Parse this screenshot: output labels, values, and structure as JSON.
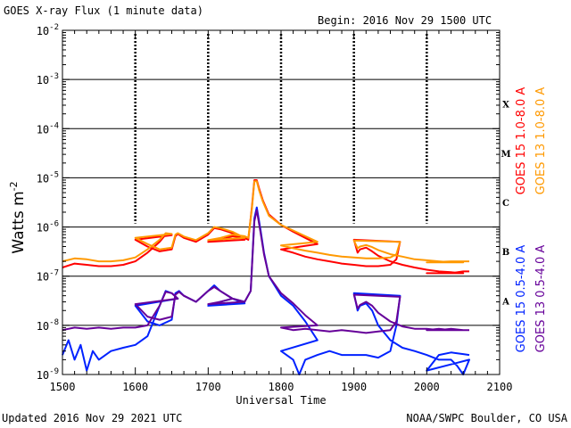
{
  "header": {
    "title": "GOES X-ray Flux (1 minute data)",
    "begin": "Begin: 2016 Nov 29 1500 UTC"
  },
  "footer": {
    "updated": "Updated 2016 Nov 29 2021 UTC",
    "credit": "NOAA/SWPC Boulder, CO USA"
  },
  "chart_data": {
    "type": "line",
    "title": "GOES X-ray Flux (1 minute data)",
    "xlabel": "Universal Time",
    "ylabel": "Watts m",
    "ylabel_sup": "-2",
    "x_ticks": [
      "1500",
      "1600",
      "1700",
      "1800",
      "1900",
      "2000",
      "2100"
    ],
    "x_range": [
      "1500",
      "2100"
    ],
    "y_scale": "log",
    "y_range_exponents": [
      -9,
      -2
    ],
    "y_ticks": [
      {
        "base": "10",
        "exp": "-2"
      },
      {
        "base": "10",
        "exp": "-3"
      },
      {
        "base": "10",
        "exp": "-4"
      },
      {
        "base": "10",
        "exp": "-5"
      },
      {
        "base": "10",
        "exp": "-6"
      },
      {
        "base": "10",
        "exp": "-7"
      },
      {
        "base": "10",
        "exp": "-8"
      },
      {
        "base": "10",
        "exp": "-9"
      }
    ],
    "flare_classes": [
      {
        "label": "X",
        "exp": -3.5
      },
      {
        "label": "M",
        "exp": -4.5
      },
      {
        "label": "C",
        "exp": -5.5
      },
      {
        "label": "B",
        "exp": -6.5
      },
      {
        "label": "A",
        "exp": -7.5
      }
    ],
    "grid": "horizontal lines at each decade from 1e-8 to 1e-3",
    "legend_placement": "right, vertical",
    "series": [
      {
        "name": "GOES 15 1.0-8.0 A",
        "color": "#ff0000",
        "x": [
          "1500",
          "1510",
          "1520",
          "1530",
          "1540",
          "1550",
          "1560",
          "1570",
          "1580",
          "1585",
          "1590",
          "1600",
          "1610",
          "1620",
          "1630",
          "1633",
          "1635",
          "1640",
          "1650",
          "1660",
          "1665",
          "1670",
          "1680",
          "1690",
          "1700",
          "1710",
          "1720",
          "1730",
          "1733",
          "1736",
          "1738",
          "1740",
          "1742",
          "1745",
          "1750",
          "1760",
          "1770",
          "1780",
          "1790",
          "1800",
          "1810",
          "1820",
          "1830",
          "1840",
          "1850",
          "1860",
          "1870",
          "1880",
          "1890",
          "1895",
          "1898",
          "1900",
          "1903",
          "1905",
          "1910",
          "1915",
          "1920",
          "1930",
          "1940",
          "1950",
          "1960",
          "1970",
          "1980",
          "1990",
          "2000",
          "2010",
          "2020",
          "2030",
          "2035"
        ],
        "y": [
          1.5e-07,
          1.8e-07,
          1.7e-07,
          1.6e-07,
          1.6e-07,
          1.7e-07,
          2e-07,
          3e-07,
          5e-07,
          7e-07,
          6.8e-07,
          5.5e-07,
          4e-07,
          3.2e-07,
          3.5e-07,
          6.5e-07,
          7.2e-07,
          6e-07,
          5e-07,
          7e-07,
          9.5e-07,
          9e-07,
          7.5e-07,
          5.5e-07,
          5e-07,
          5.5e-07,
          6.5e-07,
          6e-07,
          5.5e-07,
          2.5e-06,
          9e-06,
          9e-06,
          6e-06,
          3.5e-06,
          1.8e-06,
          1.1e-06,
          8e-07,
          6e-07,
          4.5e-07,
          3.5e-07,
          3e-07,
          2.5e-07,
          2.2e-07,
          2e-07,
          1.8e-07,
          1.7e-07,
          1.6e-07,
          1.6e-07,
          1.7e-07,
          2.2e-07,
          5e-07,
          5.5e-07,
          3e-07,
          3.5e-07,
          3.8e-07,
          3.2e-07,
          2.6e-07,
          2e-07,
          1.7e-07,
          1.5e-07,
          1.35e-07,
          1.25e-07,
          1.2e-07,
          1.15e-07,
          1.15e-07,
          1.15e-07,
          1.15e-07,
          1.25e-07,
          1.25e-07
        ]
      },
      {
        "name": "GOES 13 1.0-8.0 A",
        "color": "#ff9900",
        "x": [
          "1500",
          "1510",
          "1520",
          "1530",
          "1540",
          "1550",
          "1560",
          "1570",
          "1580",
          "1585",
          "1590",
          "1600",
          "1610",
          "1620",
          "1630",
          "1633",
          "1635",
          "1640",
          "1650",
          "1660",
          "1665",
          "1670",
          "1680",
          "1690",
          "1700",
          "1710",
          "1720",
          "1730",
          "1733",
          "1736",
          "1738",
          "1740",
          "1742",
          "1745",
          "1750",
          "1760",
          "1770",
          "1780",
          "1790",
          "1800",
          "1810",
          "1820",
          "1830",
          "1840",
          "1850",
          "1860",
          "1870",
          "1880",
          "1890",
          "1895",
          "1898",
          "1900",
          "1903",
          "1905",
          "1910",
          "1915",
          "1920",
          "1930",
          "1940",
          "1950",
          "1960",
          "1970",
          "1980",
          "1990",
          "2000",
          "2010",
          "2020",
          "2030",
          "2035"
        ],
        "y": [
          2e-07,
          2.3e-07,
          2.2e-07,
          2e-07,
          2e-07,
          2.1e-07,
          2.4e-07,
          3.5e-07,
          5.5e-07,
          7.5e-07,
          7.2e-07,
          6e-07,
          4.5e-07,
          3.5e-07,
          3.8e-07,
          7e-07,
          7.5e-07,
          6.4e-07,
          5.4e-07,
          7.5e-07,
          1e-06,
          9.5e-07,
          8e-07,
          6e-07,
          5.4e-07,
          6e-07,
          7e-07,
          6.5e-07,
          6e-07,
          2.3e-06,
          8.5e-06,
          8.5e-06,
          5.5e-06,
          3.3e-06,
          1.7e-06,
          1.1e-06,
          8.5e-07,
          6.5e-07,
          5e-07,
          4.2e-07,
          3.7e-07,
          3.3e-07,
          3e-07,
          2.7e-07,
          2.5e-07,
          2.4e-07,
          2.3e-07,
          2.3e-07,
          2.4e-07,
          2.8e-07,
          5e-07,
          5.3e-07,
          3.7e-07,
          4e-07,
          4.3e-07,
          3.9e-07,
          3.4e-07,
          2.8e-07,
          2.5e-07,
          2.2e-07,
          2.1e-07,
          2e-07,
          1.9e-07,
          1.9e-07,
          1.9e-07,
          1.95e-07,
          2e-07,
          2e-07,
          2e-07
        ]
      },
      {
        "name": "GOES 15 0.5-4.0 A",
        "color": "#0022ff",
        "x": [
          "1500",
          "1505",
          "1510",
          "1515",
          "1520",
          "1525",
          "1530",
          "1540",
          "1550",
          "1560",
          "1570",
          "1580",
          "1585",
          "1590",
          "1595",
          "1600",
          "1610",
          "1620",
          "1630",
          "1633",
          "1636",
          "1640",
          "1650",
          "1660",
          "1665",
          "1670",
          "1680",
          "1690",
          "1700",
          "1710",
          "1720",
          "1730",
          "1735",
          "1738",
          "1740",
          "1743",
          "1746",
          "1750",
          "1760",
          "1770",
          "1780",
          "1790",
          "1800",
          "1810",
          "1815",
          "1820",
          "1830",
          "1840",
          "1850",
          "1860",
          "1870",
          "1880",
          "1890",
          "1895",
          "1898",
          "1900",
          "1903",
          "1905",
          "1910",
          "1915",
          "1920",
          "1930",
          "1940",
          "1950",
          "1960",
          "1970",
          "1980",
          "1985",
          "1990",
          "1995",
          "2000",
          "2010",
          "2020",
          "2030",
          "2035"
        ],
        "y": [
          2.5e-09,
          5e-09,
          2e-09,
          4e-09,
          1.2e-09,
          3e-09,
          2e-09,
          3e-09,
          3.5e-09,
          4e-09,
          6e-09,
          2.5e-08,
          5e-08,
          4.5e-08,
          3.5e-08,
          2.5e-08,
          1.2e-08,
          1e-08,
          1.3e-08,
          4.5e-08,
          5e-08,
          4e-08,
          3e-08,
          5e-08,
          6.5e-08,
          5e-08,
          3.5e-08,
          2.8e-08,
          2.5e-08,
          3e-08,
          3.5e-08,
          3e-08,
          5e-08,
          1.5e-06,
          2.5e-06,
          9e-07,
          3e-07,
          1e-07,
          4e-08,
          2.5e-08,
          1.2e-08,
          5e-09,
          3e-09,
          2e-09,
          1e-09,
          2e-09,
          2.5e-09,
          3e-09,
          2.5e-09,
          2.5e-09,
          2.5e-09,
          2.2e-09,
          3e-09,
          1e-08,
          4e-08,
          4.5e-08,
          2e-08,
          2.5e-08,
          2.8e-08,
          2e-08,
          1e-08,
          5e-09,
          3.5e-09,
          3e-09,
          2.5e-09,
          2e-09,
          2e-09,
          1.5e-09,
          1e-09,
          2e-09,
          1.2e-09,
          2.5e-09,
          2.8e-09,
          2.6e-09,
          2.5e-09
        ]
      },
      {
        "name": "GOES 13 0.5-4.0 A",
        "color": "#660099",
        "x": [
          "1500",
          "1510",
          "1520",
          "1530",
          "1540",
          "1550",
          "1560",
          "1570",
          "1580",
          "1585",
          "1590",
          "1595",
          "1600",
          "1610",
          "1620",
          "1630",
          "1633",
          "1636",
          "1640",
          "1650",
          "1660",
          "1665",
          "1670",
          "1680",
          "1690",
          "1700",
          "1710",
          "1720",
          "1730",
          "1735",
          "1738",
          "1740",
          "1743",
          "1746",
          "1750",
          "1760",
          "1770",
          "1780",
          "1790",
          "1800",
          "1810",
          "1820",
          "1830",
          "1840",
          "1850",
          "1860",
          "1870",
          "1880",
          "1890",
          "1895",
          "1898",
          "1900",
          "1903",
          "1905",
          "1910",
          "1915",
          "1920",
          "1930",
          "1940",
          "1950",
          "1960",
          "1970",
          "1980",
          "1990",
          "2000",
          "2010",
          "2020",
          "2030",
          "2035"
        ],
        "y": [
          8e-09,
          9e-09,
          8.5e-09,
          9e-09,
          8.5e-09,
          9e-09,
          9e-09,
          1e-08,
          2.5e-08,
          4.8e-08,
          4.5e-08,
          3.5e-08,
          2.7e-08,
          1.5e-08,
          1.3e-08,
          1.5e-08,
          4.2e-08,
          4.8e-08,
          4e-08,
          3e-08,
          5e-08,
          6e-08,
          5e-08,
          3.5e-08,
          3e-08,
          2.7e-08,
          3e-08,
          3.5e-08,
          3e-08,
          5e-08,
          1.3e-06,
          2.2e-06,
          8e-07,
          2.8e-07,
          1e-07,
          4.5e-08,
          2.8e-08,
          1.6e-08,
          1e-08,
          9e-09,
          8e-09,
          8.5e-09,
          8e-09,
          7.5e-09,
          8e-09,
          7.5e-09,
          7e-09,
          7.5e-09,
          8e-09,
          1.2e-08,
          3.8e-08,
          4.2e-08,
          2.2e-08,
          2.6e-08,
          3e-08,
          2.5e-08,
          1.8e-08,
          1.2e-08,
          9.5e-09,
          8.5e-09,
          8.5e-09,
          8e-09,
          8.5e-09,
          8e-09,
          8e-09,
          8.5e-09,
          8e-09,
          8e-09,
          8e-09
        ]
      }
    ]
  }
}
